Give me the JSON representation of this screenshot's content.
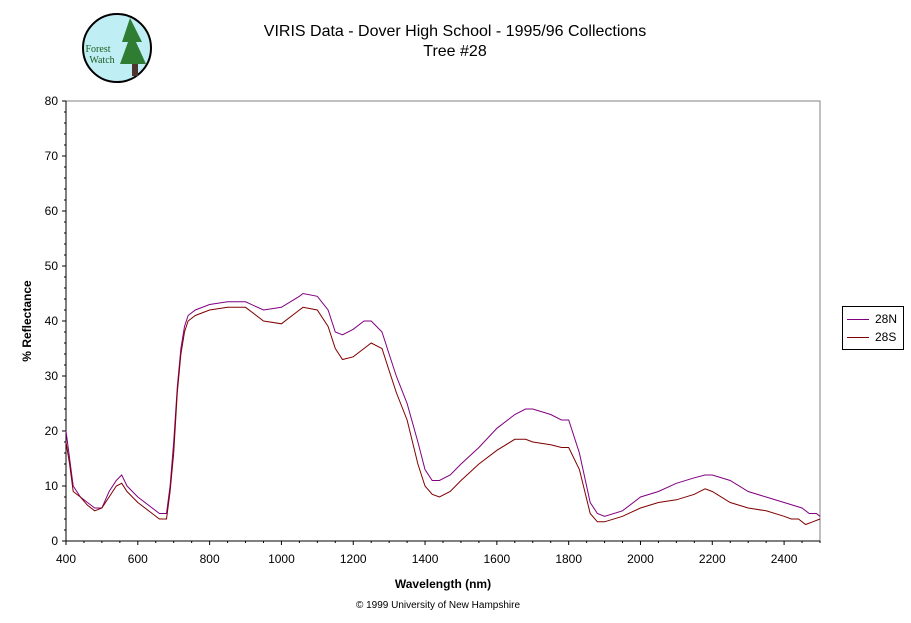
{
  "logo": {
    "text_line1": "Forest",
    "text_line2": "Watch",
    "circle_color": "#bfeef4",
    "tree_color": "#2e7d32"
  },
  "chart_data": {
    "type": "line",
    "title": "VIRIS Data - Dover High School - 1995/96 Collections",
    "subtitle": "Tree #28",
    "xlabel": "Wavelength (nm)",
    "ylabel": "% Reflectance",
    "xlim": [
      400,
      2500
    ],
    "ylim": [
      0,
      80
    ],
    "x_ticks": [
      400,
      600,
      800,
      1000,
      1200,
      1400,
      1600,
      1800,
      2000,
      2200,
      2400
    ],
    "y_ticks": [
      0,
      10,
      20,
      30,
      40,
      50,
      60,
      70,
      80
    ],
    "grid": false,
    "legend_position": "right",
    "series": [
      {
        "name": "28N",
        "color": "#800080",
        "x": [
          400,
          410,
          420,
          440,
          460,
          480,
          500,
          520,
          540,
          555,
          570,
          600,
          640,
          660,
          680,
          690,
          700,
          710,
          720,
          730,
          740,
          760,
          800,
          850,
          900,
          950,
          1000,
          1050,
          1060,
          1100,
          1130,
          1150,
          1170,
          1200,
          1230,
          1250,
          1280,
          1300,
          1320,
          1350,
          1380,
          1400,
          1420,
          1440,
          1470,
          1500,
          1550,
          1600,
          1650,
          1680,
          1700,
          1750,
          1780,
          1800,
          1830,
          1860,
          1880,
          1900,
          1950,
          2000,
          2050,
          2100,
          2150,
          2180,
          2200,
          2250,
          2300,
          2350,
          2400,
          2450,
          2470,
          2490,
          2500
        ],
        "y": [
          20,
          15,
          10,
          8,
          7,
          6,
          6,
          9,
          11,
          12,
          10,
          8,
          6,
          5,
          5,
          10,
          18,
          28,
          35,
          39,
          41,
          42,
          43,
          43.5,
          43.5,
          42,
          42.5,
          44.5,
          45,
          44.5,
          42,
          38,
          37.5,
          38.5,
          40,
          40,
          38,
          34,
          30,
          25,
          18,
          13,
          11,
          11,
          12,
          14,
          17,
          20.5,
          23,
          24,
          24,
          23,
          22,
          22,
          16,
          7,
          5,
          4.5,
          5.5,
          8,
          9,
          10.5,
          11.5,
          12,
          12,
          11,
          9,
          8,
          7,
          6,
          5,
          5,
          4.5
        ]
      },
      {
        "name": "28S",
        "color": "#800000",
        "x": [
          400,
          410,
          420,
          440,
          460,
          480,
          500,
          520,
          540,
          555,
          570,
          600,
          640,
          660,
          680,
          690,
          700,
          710,
          720,
          730,
          740,
          760,
          800,
          850,
          900,
          950,
          1000,
          1050,
          1060,
          1100,
          1130,
          1150,
          1170,
          1200,
          1230,
          1250,
          1280,
          1300,
          1320,
          1350,
          1380,
          1400,
          1420,
          1440,
          1470,
          1500,
          1550,
          1600,
          1650,
          1680,
          1700,
          1750,
          1780,
          1800,
          1830,
          1860,
          1880,
          1900,
          1950,
          2000,
          2050,
          2100,
          2150,
          2180,
          2200,
          2250,
          2300,
          2350,
          2400,
          2420,
          2440,
          2460,
          2480,
          2500
        ],
        "y": [
          18,
          14,
          9,
          8,
          6.5,
          5.5,
          6,
          8,
          10,
          10.5,
          9,
          7,
          5,
          4,
          4,
          9,
          16,
          27,
          34,
          38,
          40,
          41,
          42,
          42.5,
          42.5,
          40,
          39.5,
          42,
          42.5,
          42,
          39,
          35,
          33,
          33.5,
          35,
          36,
          35,
          31,
          27,
          22,
          14,
          10,
          8.5,
          8,
          9,
          11,
          14,
          16.5,
          18.5,
          18.5,
          18,
          17.5,
          17,
          17,
          13,
          5,
          3.5,
          3.5,
          4.5,
          6,
          7,
          7.5,
          8.5,
          9.5,
          9,
          7,
          6,
          5.5,
          4.5,
          4,
          4,
          3,
          3.5,
          4
        ]
      }
    ]
  },
  "copyright": "© 1999 University of New Hampshire"
}
